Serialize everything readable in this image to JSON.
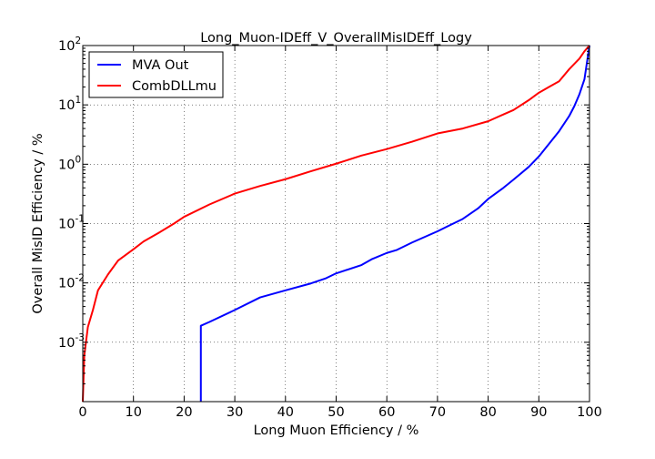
{
  "chart_data": {
    "type": "line",
    "title": "Long_Muon-IDEff_V_OverallMisIDEff_Logy",
    "xlabel": "Long Muon Efficiency / %",
    "ylabel": "Overall MisID Efficiency / %",
    "xlim": [
      0,
      100
    ],
    "ylim": [
      0.0001,
      100
    ],
    "yscale": "log",
    "grid": true,
    "legend_position": "upper-left",
    "x_ticks": [
      "0",
      "10",
      "20",
      "30",
      "40",
      "50",
      "60",
      "70",
      "80",
      "90",
      "100"
    ],
    "y_ticks": [
      {
        "base": "10",
        "exp": "-3",
        "value": 0.001
      },
      {
        "base": "10",
        "exp": "-2",
        "value": 0.01
      },
      {
        "base": "10",
        "exp": "-1",
        "value": 0.1
      },
      {
        "base": "10",
        "exp": "0",
        "value": 1
      },
      {
        "base": "10",
        "exp": "1",
        "value": 10
      },
      {
        "base": "10",
        "exp": "2",
        "value": 100
      }
    ],
    "series": [
      {
        "name": "MVA Out",
        "color": "#0000ff",
        "points": [
          [
            23.3,
            0.0001
          ],
          [
            23.3,
            0.0019
          ],
          [
            25,
            0.0022
          ],
          [
            30,
            0.0035
          ],
          [
            35,
            0.0057
          ],
          [
            40,
            0.0075
          ],
          [
            45,
            0.0098
          ],
          [
            48,
            0.012
          ],
          [
            50,
            0.0145
          ],
          [
            55,
            0.02
          ],
          [
            57,
            0.025
          ],
          [
            60,
            0.032
          ],
          [
            62,
            0.036
          ],
          [
            65,
            0.048
          ],
          [
            70,
            0.074
          ],
          [
            72,
            0.09
          ],
          [
            75,
            0.12
          ],
          [
            78,
            0.18
          ],
          [
            80,
            0.26
          ],
          [
            83,
            0.4
          ],
          [
            85,
            0.55
          ],
          [
            88,
            0.9
          ],
          [
            90,
            1.35
          ],
          [
            92,
            2.2
          ],
          [
            94,
            3.6
          ],
          [
            96,
            6.5
          ],
          [
            97,
            9.5
          ],
          [
            98,
            15
          ],
          [
            99,
            27
          ],
          [
            100,
            100
          ]
        ]
      },
      {
        "name": "CombDLLmu",
        "color": "#ff0000",
        "points": [
          [
            0,
            0.0001
          ],
          [
            0.3,
            0.0006
          ],
          [
            1,
            0.0018
          ],
          [
            2,
            0.0035
          ],
          [
            3,
            0.0075
          ],
          [
            5,
            0.014
          ],
          [
            7,
            0.024
          ],
          [
            10,
            0.037
          ],
          [
            12,
            0.05
          ],
          [
            15,
            0.07
          ],
          [
            18,
            0.1
          ],
          [
            20,
            0.13
          ],
          [
            25,
            0.21
          ],
          [
            30,
            0.32
          ],
          [
            35,
            0.43
          ],
          [
            40,
            0.56
          ],
          [
            45,
            0.76
          ],
          [
            50,
            1.02
          ],
          [
            55,
            1.4
          ],
          [
            60,
            1.8
          ],
          [
            65,
            2.4
          ],
          [
            70,
            3.3
          ],
          [
            75,
            4.0
          ],
          [
            80,
            5.3
          ],
          [
            83,
            6.9
          ],
          [
            85,
            8.2
          ],
          [
            88,
            12
          ],
          [
            90,
            16
          ],
          [
            92,
            20
          ],
          [
            94,
            25
          ],
          [
            96,
            40
          ],
          [
            98,
            60
          ],
          [
            99,
            80
          ],
          [
            100,
            100
          ]
        ]
      }
    ]
  }
}
